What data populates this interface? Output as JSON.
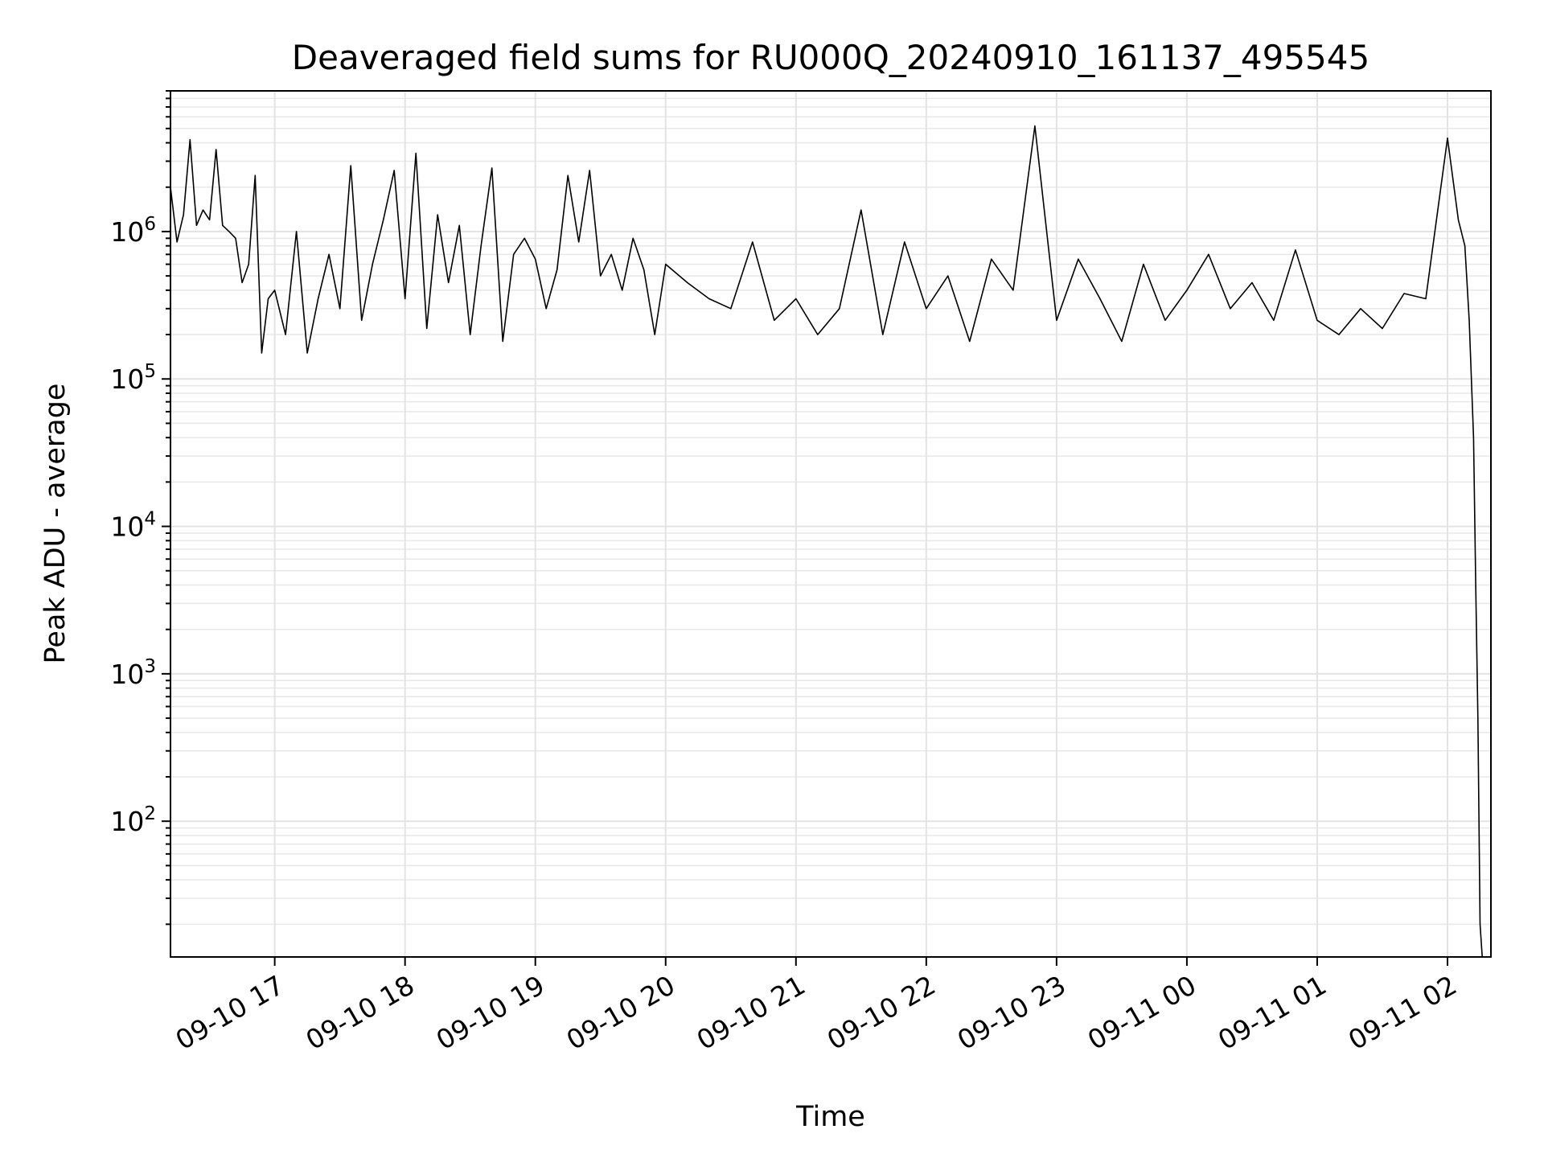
{
  "chart_data": {
    "type": "line",
    "title": "Deaveraged field sums for RU000Q_20240910_161137_495545",
    "xlabel": "Time",
    "ylabel": "Peak ADU - average",
    "yscale": "log",
    "ylim": [
      12,
      9000000
    ],
    "xlim": [
      "2024-09-10 16:12",
      "2024-09-11 02:20"
    ],
    "grid": true,
    "color": "#000000",
    "x_ticks": [
      {
        "t": "2024-09-10 17:00",
        "label": "09-10 17"
      },
      {
        "t": "2024-09-10 18:00",
        "label": "09-10 18"
      },
      {
        "t": "2024-09-10 19:00",
        "label": "09-10 19"
      },
      {
        "t": "2024-09-10 20:00",
        "label": "09-10 20"
      },
      {
        "t": "2024-09-10 21:00",
        "label": "09-10 21"
      },
      {
        "t": "2024-09-10 22:00",
        "label": "09-10 22"
      },
      {
        "t": "2024-09-10 23:00",
        "label": "09-10 23"
      },
      {
        "t": "2024-09-11 00:00",
        "label": "09-11 00"
      },
      {
        "t": "2024-09-11 01:00",
        "label": "09-11 01"
      },
      {
        "t": "2024-09-11 02:00",
        "label": "09-11 02"
      }
    ],
    "y_ticks": [
      {
        "value": 100,
        "base": "10",
        "exp": "2"
      },
      {
        "value": 1000,
        "base": "10",
        "exp": "3"
      },
      {
        "value": 10000,
        "base": "10",
        "exp": "4"
      },
      {
        "value": 100000,
        "base": "10",
        "exp": "5"
      },
      {
        "value": 1000000,
        "base": "10",
        "exp": "6"
      }
    ],
    "series": [
      {
        "x": [
          "2024-09-10 16:12",
          "2024-09-10 16:15",
          "2024-09-10 16:18",
          "2024-09-10 16:21",
          "2024-09-10 16:24",
          "2024-09-10 16:27",
          "2024-09-10 16:30",
          "2024-09-10 16:33",
          "2024-09-10 16:36",
          "2024-09-10 16:39",
          "2024-09-10 16:42",
          "2024-09-10 16:45",
          "2024-09-10 16:48",
          "2024-09-10 16:51",
          "2024-09-10 16:54",
          "2024-09-10 16:57",
          "2024-09-10 17:00",
          "2024-09-10 17:05",
          "2024-09-10 17:10",
          "2024-09-10 17:15",
          "2024-09-10 17:20",
          "2024-09-10 17:25",
          "2024-09-10 17:30",
          "2024-09-10 17:35",
          "2024-09-10 17:40",
          "2024-09-10 17:45",
          "2024-09-10 17:50",
          "2024-09-10 17:55",
          "2024-09-10 18:00",
          "2024-09-10 18:05",
          "2024-09-10 18:10",
          "2024-09-10 18:15",
          "2024-09-10 18:20",
          "2024-09-10 18:25",
          "2024-09-10 18:30",
          "2024-09-10 18:35",
          "2024-09-10 18:40",
          "2024-09-10 18:45",
          "2024-09-10 18:50",
          "2024-09-10 18:55",
          "2024-09-10 19:00",
          "2024-09-10 19:05",
          "2024-09-10 19:10",
          "2024-09-10 19:15",
          "2024-09-10 19:20",
          "2024-09-10 19:25",
          "2024-09-10 19:30",
          "2024-09-10 19:35",
          "2024-09-10 19:40",
          "2024-09-10 19:45",
          "2024-09-10 19:50",
          "2024-09-10 19:55",
          "2024-09-10 20:00",
          "2024-09-10 20:10",
          "2024-09-10 20:20",
          "2024-09-10 20:30",
          "2024-09-10 20:40",
          "2024-09-10 20:50",
          "2024-09-10 21:00",
          "2024-09-10 21:10",
          "2024-09-10 21:20",
          "2024-09-10 21:30",
          "2024-09-10 21:40",
          "2024-09-10 21:50",
          "2024-09-10 22:00",
          "2024-09-10 22:10",
          "2024-09-10 22:20",
          "2024-09-10 22:30",
          "2024-09-10 22:40",
          "2024-09-10 22:50",
          "2024-09-10 23:00",
          "2024-09-10 23:10",
          "2024-09-10 23:20",
          "2024-09-10 23:30",
          "2024-09-10 23:40",
          "2024-09-10 23:50",
          "2024-09-11 00:00",
          "2024-09-11 00:10",
          "2024-09-11 00:20",
          "2024-09-11 00:30",
          "2024-09-11 00:40",
          "2024-09-11 00:50",
          "2024-09-11 01:00",
          "2024-09-11 01:10",
          "2024-09-11 01:20",
          "2024-09-11 01:30",
          "2024-09-11 01:40",
          "2024-09-11 01:50",
          "2024-09-11 02:00",
          "2024-09-11 02:05",
          "2024-09-11 02:08",
          "2024-09-11 02:10",
          "2024-09-11 02:12",
          "2024-09-11 02:13",
          "2024-09-11 02:14",
          "2024-09-11 02:15",
          "2024-09-11 02:16"
        ],
        "values": [
          2000000,
          850000,
          1300000,
          4200000,
          1100000,
          1400000,
          1200000,
          3600000,
          1100000,
          1000000,
          900000,
          450000,
          600000,
          2400000,
          150000,
          350000,
          400000,
          200000,
          1000000,
          150000,
          350000,
          700000,
          300000,
          2800000,
          250000,
          600000,
          1200000,
          2600000,
          350000,
          3400000,
          220000,
          1300000,
          450000,
          1100000,
          200000,
          800000,
          2700000,
          180000,
          700000,
          900000,
          650000,
          300000,
          550000,
          2400000,
          850000,
          2600000,
          500000,
          700000,
          400000,
          900000,
          550000,
          200000,
          600000,
          450000,
          350000,
          300000,
          850000,
          250000,
          350000,
          200000,
          300000,
          1400000,
          200000,
          850000,
          300000,
          500000,
          180000,
          650000,
          400000,
          5200000,
          250000,
          650000,
          350000,
          180000,
          600000,
          250000,
          400000,
          700000,
          300000,
          450000,
          250000,
          750000,
          250000,
          200000,
          300000,
          220000,
          380000,
          350000,
          4300000,
          1200000,
          800000,
          250000,
          40000,
          4000,
          500,
          20,
          12
        ]
      }
    ]
  }
}
